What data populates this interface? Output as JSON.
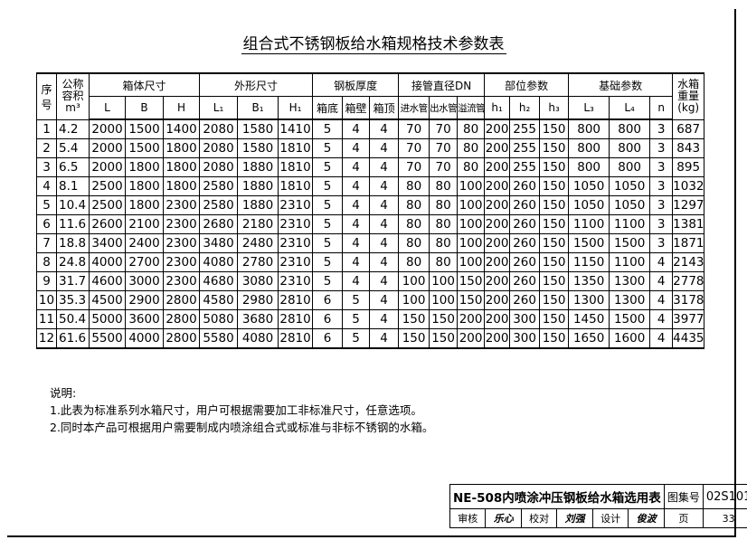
{
  "title": "组合式不锈钢板给水箱规格技术参数表",
  "headers": {
    "no": "序号",
    "volume": "公称容积",
    "volume_unit": "m³",
    "body_size": "箱体尺寸",
    "outer_size": "外形尺寸",
    "plate_thickness": "钢板厚度",
    "pipe_dn": "接管直径DN",
    "position_params": "部位参数",
    "foundation_params": "基础参数",
    "weight": "水箱重量",
    "weight_unit": "(kg)",
    "sub": [
      "L",
      "B",
      "H",
      "L₁",
      "B₁",
      "H₁",
      "箱底",
      "箱壁",
      "箱顶",
      "进水管",
      "出水管",
      "溢流管",
      "h₁",
      "h₂",
      "h₃",
      "L₃",
      "L₄",
      "n"
    ]
  },
  "rows": [
    [
      "1",
      "4.2",
      "2000",
      "1500",
      "1400",
      "2080",
      "1580",
      "1410",
      "5",
      "4",
      "4",
      "70",
      "70",
      "80",
      "200",
      "255",
      "150",
      "800",
      "800",
      "3",
      "687"
    ],
    [
      "2",
      "5.4",
      "2000",
      "1500",
      "1800",
      "2080",
      "1580",
      "1810",
      "5",
      "4",
      "4",
      "70",
      "70",
      "80",
      "200",
      "255",
      "150",
      "800",
      "800",
      "3",
      "843"
    ],
    [
      "3",
      "6.5",
      "2000",
      "1800",
      "1800",
      "2080",
      "1880",
      "1810",
      "5",
      "4",
      "4",
      "70",
      "70",
      "80",
      "200",
      "255",
      "150",
      "800",
      "800",
      "3",
      "895"
    ],
    [
      "4",
      "8.1",
      "2500",
      "1800",
      "1800",
      "2580",
      "1880",
      "1810",
      "5",
      "4",
      "4",
      "80",
      "80",
      "100",
      "200",
      "260",
      "150",
      "1050",
      "1050",
      "3",
      "1032"
    ],
    [
      "5",
      "10.4",
      "2500",
      "1800",
      "2300",
      "2580",
      "1880",
      "2310",
      "5",
      "4",
      "4",
      "80",
      "80",
      "100",
      "200",
      "260",
      "150",
      "1050",
      "1050",
      "3",
      "1297"
    ],
    [
      "6",
      "11.6",
      "2600",
      "2100",
      "2300",
      "2680",
      "2180",
      "2310",
      "5",
      "4",
      "4",
      "80",
      "80",
      "100",
      "200",
      "260",
      "150",
      "1100",
      "1100",
      "3",
      "1381"
    ],
    [
      "7",
      "18.8",
      "3400",
      "2400",
      "2300",
      "3480",
      "2480",
      "2310",
      "5",
      "4",
      "4",
      "80",
      "80",
      "100",
      "200",
      "260",
      "150",
      "1500",
      "1500",
      "3",
      "1871"
    ],
    [
      "8",
      "24.8",
      "4000",
      "2700",
      "2300",
      "4080",
      "2780",
      "2310",
      "5",
      "4",
      "4",
      "80",
      "80",
      "100",
      "200",
      "260",
      "150",
      "1150",
      "1100",
      "4",
      "2143"
    ],
    [
      "9",
      "31.7",
      "4600",
      "3000",
      "2300",
      "4680",
      "3080",
      "2310",
      "5",
      "4",
      "4",
      "100",
      "100",
      "150",
      "200",
      "260",
      "150",
      "1350",
      "1300",
      "4",
      "2778"
    ],
    [
      "10",
      "35.3",
      "4500",
      "2900",
      "2800",
      "4580",
      "2980",
      "2810",
      "6",
      "5",
      "4",
      "100",
      "100",
      "150",
      "200",
      "260",
      "150",
      "1300",
      "1300",
      "4",
      "3178"
    ],
    [
      "11",
      "50.4",
      "5000",
      "3600",
      "2800",
      "5080",
      "3680",
      "2810",
      "6",
      "5",
      "4",
      "150",
      "150",
      "200",
      "200",
      "300",
      "150",
      "1450",
      "1500",
      "4",
      "3977"
    ],
    [
      "12",
      "61.6",
      "5500",
      "4000",
      "2800",
      "5580",
      "4080",
      "2810",
      "6",
      "5",
      "4",
      "150",
      "150",
      "200",
      "200",
      "300",
      "150",
      "1650",
      "1600",
      "4",
      "4435"
    ]
  ],
  "notes": {
    "heading": "说明:",
    "items": [
      "1.此表为标准系列水箱尺寸，用户可根据需要加工非标准尺寸，任意选项。",
      "2.同时本产品可根据用户需要制成内喷涂组合式或标准与非标不锈钢的水箱。"
    ]
  },
  "title_block": {
    "drawing_title": "NE-508内喷涂冲压钢板给水箱选用表",
    "atlas_label": "图集号",
    "atlas_no": "02S101",
    "review_label": "审核",
    "review_signature": "乐心",
    "check_label": "校对",
    "check_signature": "刘强",
    "design_label": "设计",
    "design_signature": "俊波",
    "page_label": "页",
    "page_no": "33"
  }
}
